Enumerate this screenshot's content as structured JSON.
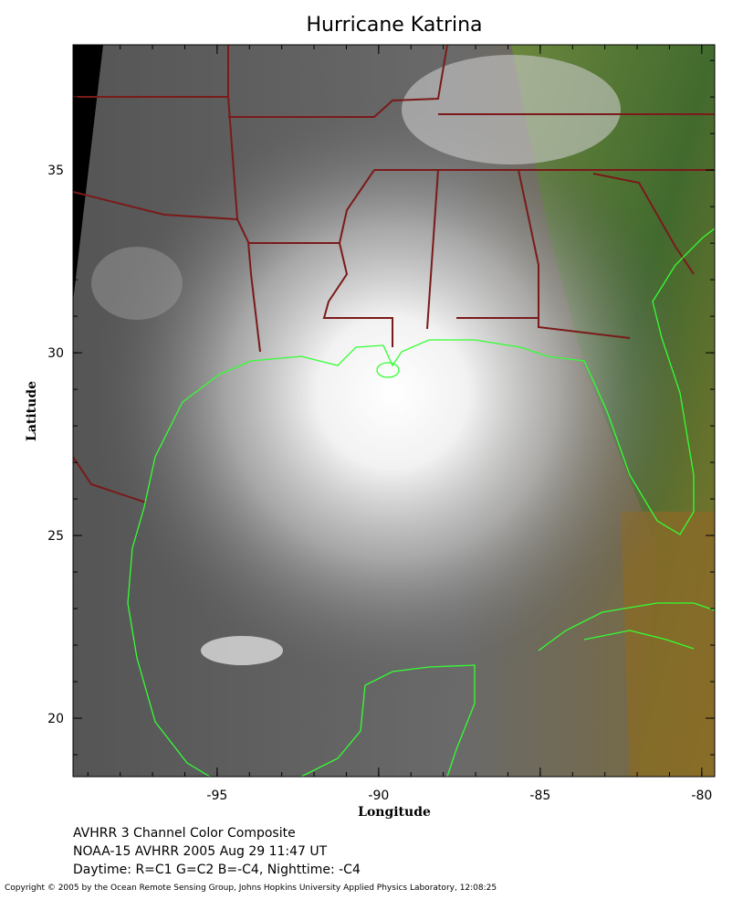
{
  "map": {
    "title": "Hurricane Katrina",
    "xlabel": "Longitude",
    "ylabel": "Latitude",
    "xlim": [
      -99.46,
      -79.6
    ],
    "ylim": [
      18.4,
      38.43
    ],
    "xticks": [
      -95,
      -90,
      -85,
      -80
    ],
    "yticks": [
      20,
      25,
      30,
      35
    ],
    "caption": [
      "AVHRR 3 Channel Color Composite",
      "NOAA-15 AVHRR 2005 Aug 29 11:47 UT",
      "Daytime: R=C1 G=C2 B=-C4, Nighttime: -C4"
    ],
    "copyright": "Copyright © 2005 by the Ocean Remote Sensing Group, Johns Hopkins University Applied Physics Laboratory, 12:08:25"
  }
}
